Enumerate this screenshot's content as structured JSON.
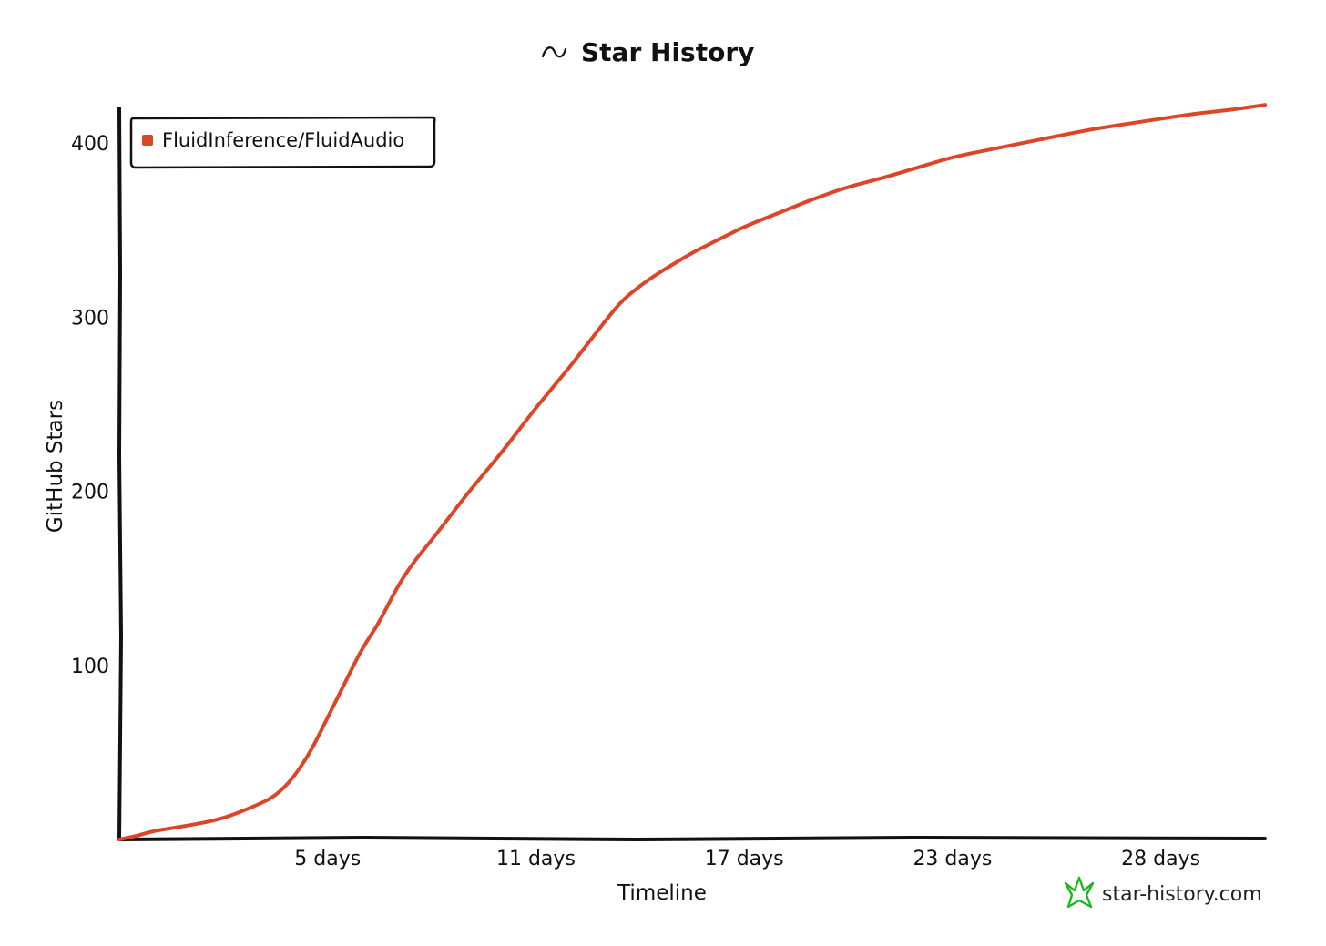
{
  "title": "Star History",
  "title_icon": "trend-wave-icon",
  "colors": {
    "series": "#dd4528",
    "axis": "#111111",
    "brand_logo": "#1bb822",
    "background": "#ffffff"
  },
  "footer": {
    "logo_icon": "star-history-logo-icon",
    "text": "star-history.com"
  },
  "chart_data": {
    "type": "line",
    "title": "Star History",
    "xlabel": "Timeline",
    "ylabel": "GitHub Stars",
    "xlim": [
      0,
      33
    ],
    "ylim": [
      0,
      420
    ],
    "x_tick_values": [
      6,
      12,
      18,
      24,
      30
    ],
    "x_tick_labels": [
      "5 days",
      "11 days",
      "17 days",
      "23 days",
      "28 days"
    ],
    "y_ticks": [
      100,
      200,
      300,
      400
    ],
    "grid": false,
    "legend": {
      "position": "top-left",
      "entries": [
        "FluidInference/FluidAudio"
      ]
    },
    "series": [
      {
        "name": "FluidInference/FluidAudio",
        "color": "#dd4528",
        "x": [
          0,
          0.5,
          1,
          2,
          3,
          4,
          4.5,
          5,
          5.5,
          6,
          6.5,
          7,
          7.5,
          8,
          8.5,
          9,
          9.5,
          10,
          10.5,
          11,
          11.5,
          12,
          12.5,
          13,
          13.5,
          14,
          14.5,
          15,
          15.5,
          16,
          16.5,
          17,
          17.5,
          18,
          19,
          20,
          21,
          22,
          23,
          24,
          25,
          26,
          27,
          28,
          29,
          30,
          31,
          32,
          33
        ],
        "y": [
          0,
          2,
          5,
          8,
          12,
          20,
          25,
          35,
          50,
          70,
          90,
          110,
          125,
          145,
          160,
          172,
          185,
          198,
          210,
          222,
          235,
          248,
          260,
          272,
          285,
          298,
          310,
          318,
          325,
          331,
          337,
          342,
          347,
          352,
          360,
          368,
          375,
          380,
          386,
          392,
          396,
          400,
          404,
          408,
          411,
          414,
          417,
          419,
          422
        ]
      }
    ]
  }
}
